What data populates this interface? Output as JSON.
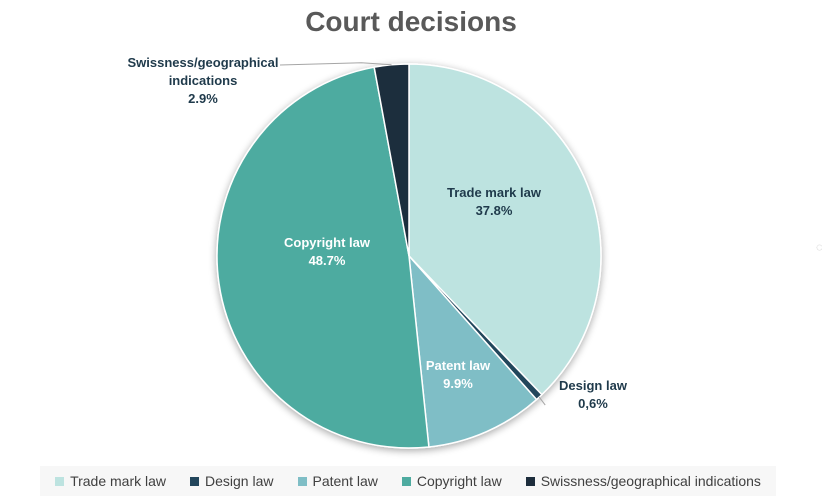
{
  "chart_data": {
    "type": "pie",
    "title": "Court decisions",
    "slices": [
      {
        "name": "Trade mark law",
        "value": 37.8,
        "label_value": "37.8%",
        "color": "#bde3e0",
        "label_color": "#1f3a4b"
      },
      {
        "name": "Design law",
        "value": 0.6,
        "label_value": "0,6%",
        "color": "#23465c",
        "label_color": "#1f3a4b"
      },
      {
        "name": "Patent law",
        "value": 9.9,
        "label_value": "9.9%",
        "color": "#7fbec6",
        "label_color": "#ffffff"
      },
      {
        "name": "Copyright law",
        "value": 48.7,
        "label_value": "48.7%",
        "color": "#4eaba0",
        "label_color": "#ffffff"
      },
      {
        "name": "Swissness/geographical indications",
        "value": 2.9,
        "label_value": "2.9%",
        "color": "#1d2d3c",
        "label_color": "#1f3a4b"
      }
    ],
    "legend_position": "bottom"
  }
}
